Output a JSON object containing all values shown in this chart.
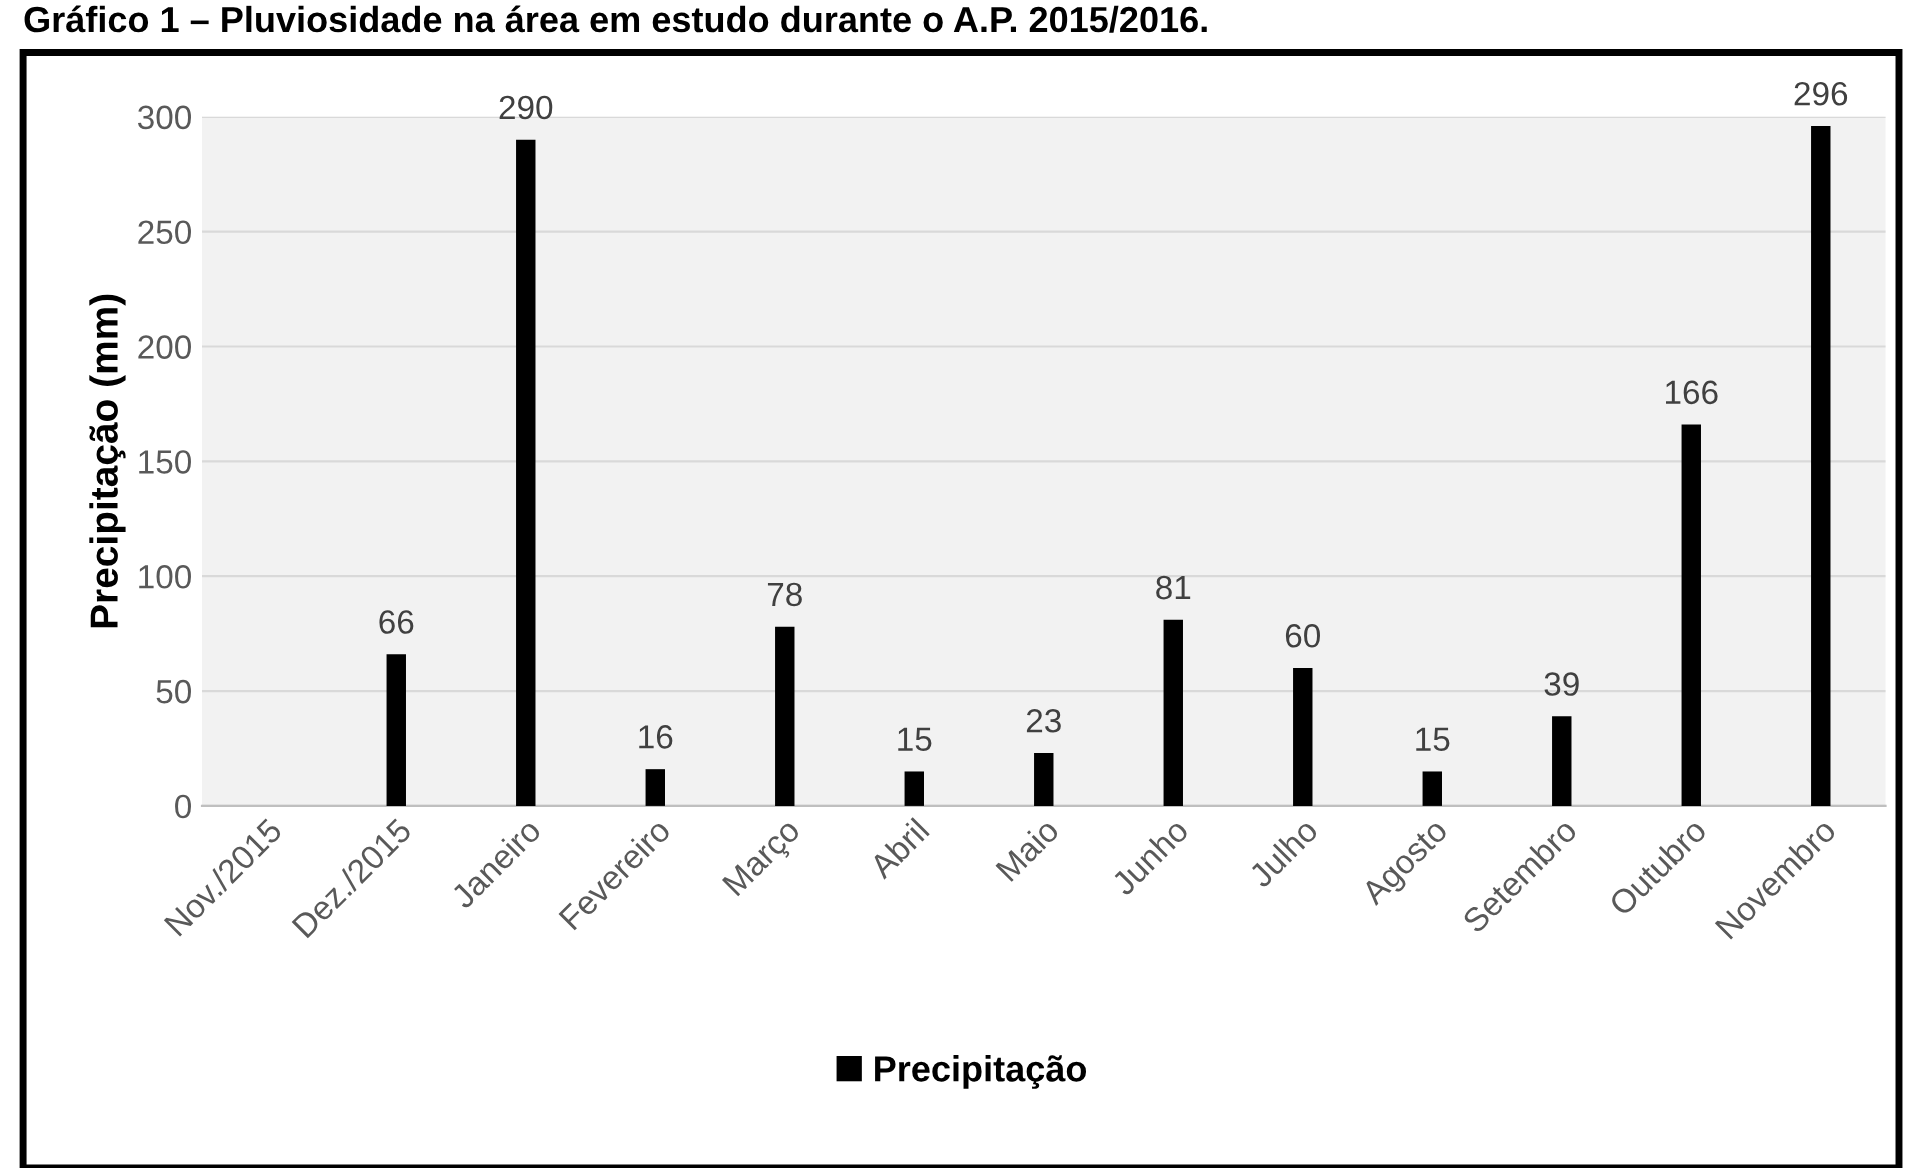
{
  "chart_data": {
    "type": "bar",
    "title": "Gráfico 1 – Pluviosidade na área em estudo durante o A.P. 2015/2016.",
    "ylabel": "Precipitação (mm)",
    "categories": [
      "Nov./2015",
      "Dez./2015",
      "Janeiro",
      "Fevereiro",
      "Março",
      "Abril",
      "Maio",
      "Junho",
      "Julho",
      "Agosto",
      "Setembro",
      "Outubro",
      "Novembro"
    ],
    "series": [
      {
        "name": "Precipitação",
        "color": "#000000",
        "values": [
          null,
          66,
          290,
          16,
          78,
          15,
          23,
          81,
          60,
          15,
          39,
          166,
          296
        ]
      }
    ],
    "ylim": [
      0,
      300
    ],
    "yticks": [
      0,
      50,
      100,
      150,
      200,
      250,
      300
    ],
    "grid": "y",
    "legend": "bottom",
    "data_labels": true
  }
}
